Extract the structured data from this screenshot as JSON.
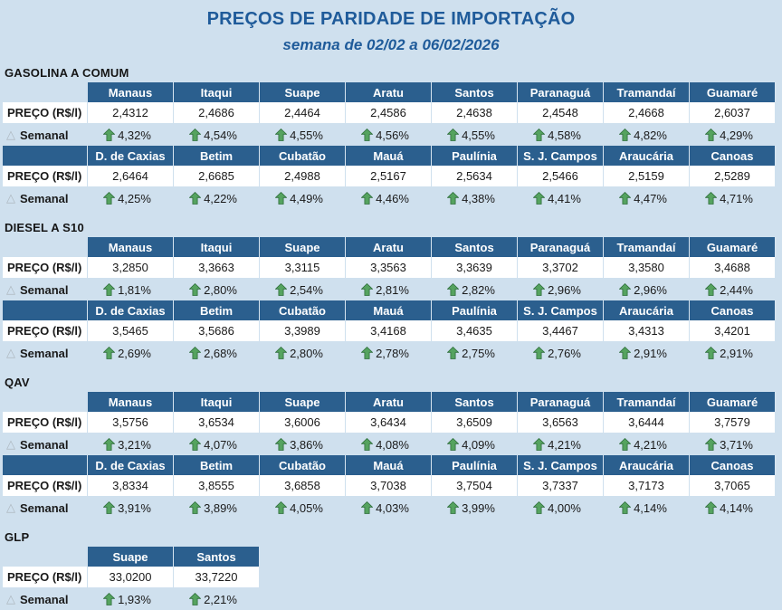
{
  "page": {
    "title": "PREÇOS DE PARIDADE DE IMPORTAÇÃO",
    "subtitle": "semana de 02/02 a 06/02/2026"
  },
  "labels": {
    "price_row": "PREÇO (R$/l)",
    "weekly_row": "Semanal"
  },
  "icons": {
    "triangle": "△",
    "arrow_up": "green-up-arrow"
  },
  "colors": {
    "page_bg": "#cfe0ee",
    "header_bg": "#2b5f8e",
    "title_text": "#1f5b9a",
    "arrow_green": "#55a35f",
    "row_white": "#ffffff"
  },
  "sections": [
    {
      "name": "GASOLINA A COMUM",
      "groups": [
        {
          "cities": [
            "Manaus",
            "Itaqui",
            "Suape",
            "Aratu",
            "Santos",
            "Paranaguá",
            "Tramandaí",
            "Guamaré"
          ],
          "prices": [
            "2,4312",
            "2,4686",
            "2,4464",
            "2,4586",
            "2,4638",
            "2,4548",
            "2,4668",
            "2,6037"
          ],
          "weekly": [
            "4,32%",
            "4,54%",
            "4,55%",
            "4,56%",
            "4,55%",
            "4,58%",
            "4,82%",
            "4,29%"
          ]
        },
        {
          "cities": [
            "D. de Caxias",
            "Betim",
            "Cubatão",
            "Mauá",
            "Paulínia",
            "S. J. Campos",
            "Araucária",
            "Canoas"
          ],
          "prices": [
            "2,6464",
            "2,6685",
            "2,4988",
            "2,5167",
            "2,5634",
            "2,5466",
            "2,5159",
            "2,5289"
          ],
          "weekly": [
            "4,25%",
            "4,22%",
            "4,49%",
            "4,46%",
            "4,38%",
            "4,41%",
            "4,47%",
            "4,71%"
          ]
        }
      ]
    },
    {
      "name": "DIESEL A S10",
      "groups": [
        {
          "cities": [
            "Manaus",
            "Itaqui",
            "Suape",
            "Aratu",
            "Santos",
            "Paranaguá",
            "Tramandaí",
            "Guamaré"
          ],
          "prices": [
            "3,2850",
            "3,3663",
            "3,3115",
            "3,3563",
            "3,3639",
            "3,3702",
            "3,3580",
            "3,4688"
          ],
          "weekly": [
            "1,81%",
            "2,80%",
            "2,54%",
            "2,81%",
            "2,82%",
            "2,96%",
            "2,96%",
            "2,44%"
          ]
        },
        {
          "cities": [
            "D. de Caxias",
            "Betim",
            "Cubatão",
            "Mauá",
            "Paulínia",
            "S. J. Campos",
            "Araucária",
            "Canoas"
          ],
          "prices": [
            "3,5465",
            "3,5686",
            "3,3989",
            "3,4168",
            "3,4635",
            "3,4467",
            "3,4313",
            "3,4201"
          ],
          "weekly": [
            "2,69%",
            "2,68%",
            "2,80%",
            "2,78%",
            "2,75%",
            "2,76%",
            "2,91%",
            "2,91%"
          ]
        }
      ]
    },
    {
      "name": "QAV",
      "groups": [
        {
          "cities": [
            "Manaus",
            "Itaqui",
            "Suape",
            "Aratu",
            "Santos",
            "Paranaguá",
            "Tramandaí",
            "Guamaré"
          ],
          "prices": [
            "3,5756",
            "3,6534",
            "3,6006",
            "3,6434",
            "3,6509",
            "3,6563",
            "3,6444",
            "3,7579"
          ],
          "weekly": [
            "3,21%",
            "4,07%",
            "3,86%",
            "4,08%",
            "4,09%",
            "4,21%",
            "4,21%",
            "3,71%"
          ]
        },
        {
          "cities": [
            "D. de Caxias",
            "Betim",
            "Cubatão",
            "Mauá",
            "Paulínia",
            "S. J. Campos",
            "Araucária",
            "Canoas"
          ],
          "prices": [
            "3,8334",
            "3,8555",
            "3,6858",
            "3,7038",
            "3,7504",
            "3,7337",
            "3,7173",
            "3,7065"
          ],
          "weekly": [
            "3,91%",
            "3,89%",
            "4,05%",
            "4,03%",
            "3,99%",
            "4,00%",
            "4,14%",
            "4,14%"
          ]
        }
      ]
    },
    {
      "name": "GLP",
      "groups": [
        {
          "cities": [
            "Suape",
            "Santos"
          ],
          "prices": [
            "33,0200",
            "33,7220"
          ],
          "weekly": [
            "1,93%",
            "2,21%"
          ]
        }
      ]
    }
  ]
}
